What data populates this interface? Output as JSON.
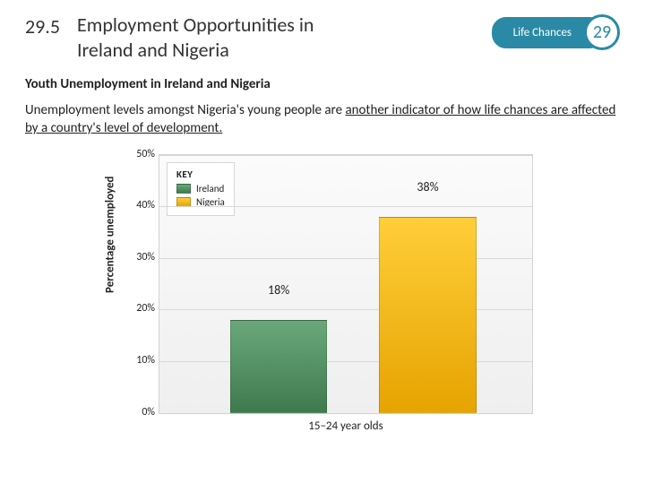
{
  "colors": {
    "accent": "#2a8aa6",
    "text": "#222222",
    "grid": "#d9d9d9",
    "chart_bg_top": "#fbfbfb",
    "chart_bg_bottom": "#efefef"
  },
  "header": {
    "section_number": "29.5",
    "title": "Employment Opportunities in Ireland and Nigeria",
    "badge_label": "Life Chances",
    "chapter_number": "29"
  },
  "subheading": "Youth Unemployment in Ireland and Nigeria",
  "body": {
    "prefix": "Unemployment levels amongst Nigeria's young people are ",
    "underlined": "another indicator of how life chances are affected by a country's level of development.",
    "suffix": ""
  },
  "chart": {
    "type": "bar",
    "y_axis_label": "Percentage unemployed",
    "x_axis_label": "15–24 year olds",
    "ymax": 50,
    "ytick_step": 10,
    "y_ticks": [
      "0%",
      "10%",
      "20%",
      "30%",
      "40%",
      "50%"
    ],
    "legend_title": "KEY",
    "series": [
      {
        "name": "Ireland",
        "value": 18,
        "label": "18%",
        "color_top": "#6aa87a",
        "color_bottom": "#3f7a4e",
        "x_pct": 32
      },
      {
        "name": "Nigeria",
        "value": 38,
        "label": "38%",
        "color_top": "#ffce3a",
        "color_bottom": "#e6a400",
        "x_pct": 72
      }
    ],
    "bar_width_pct": 26
  }
}
